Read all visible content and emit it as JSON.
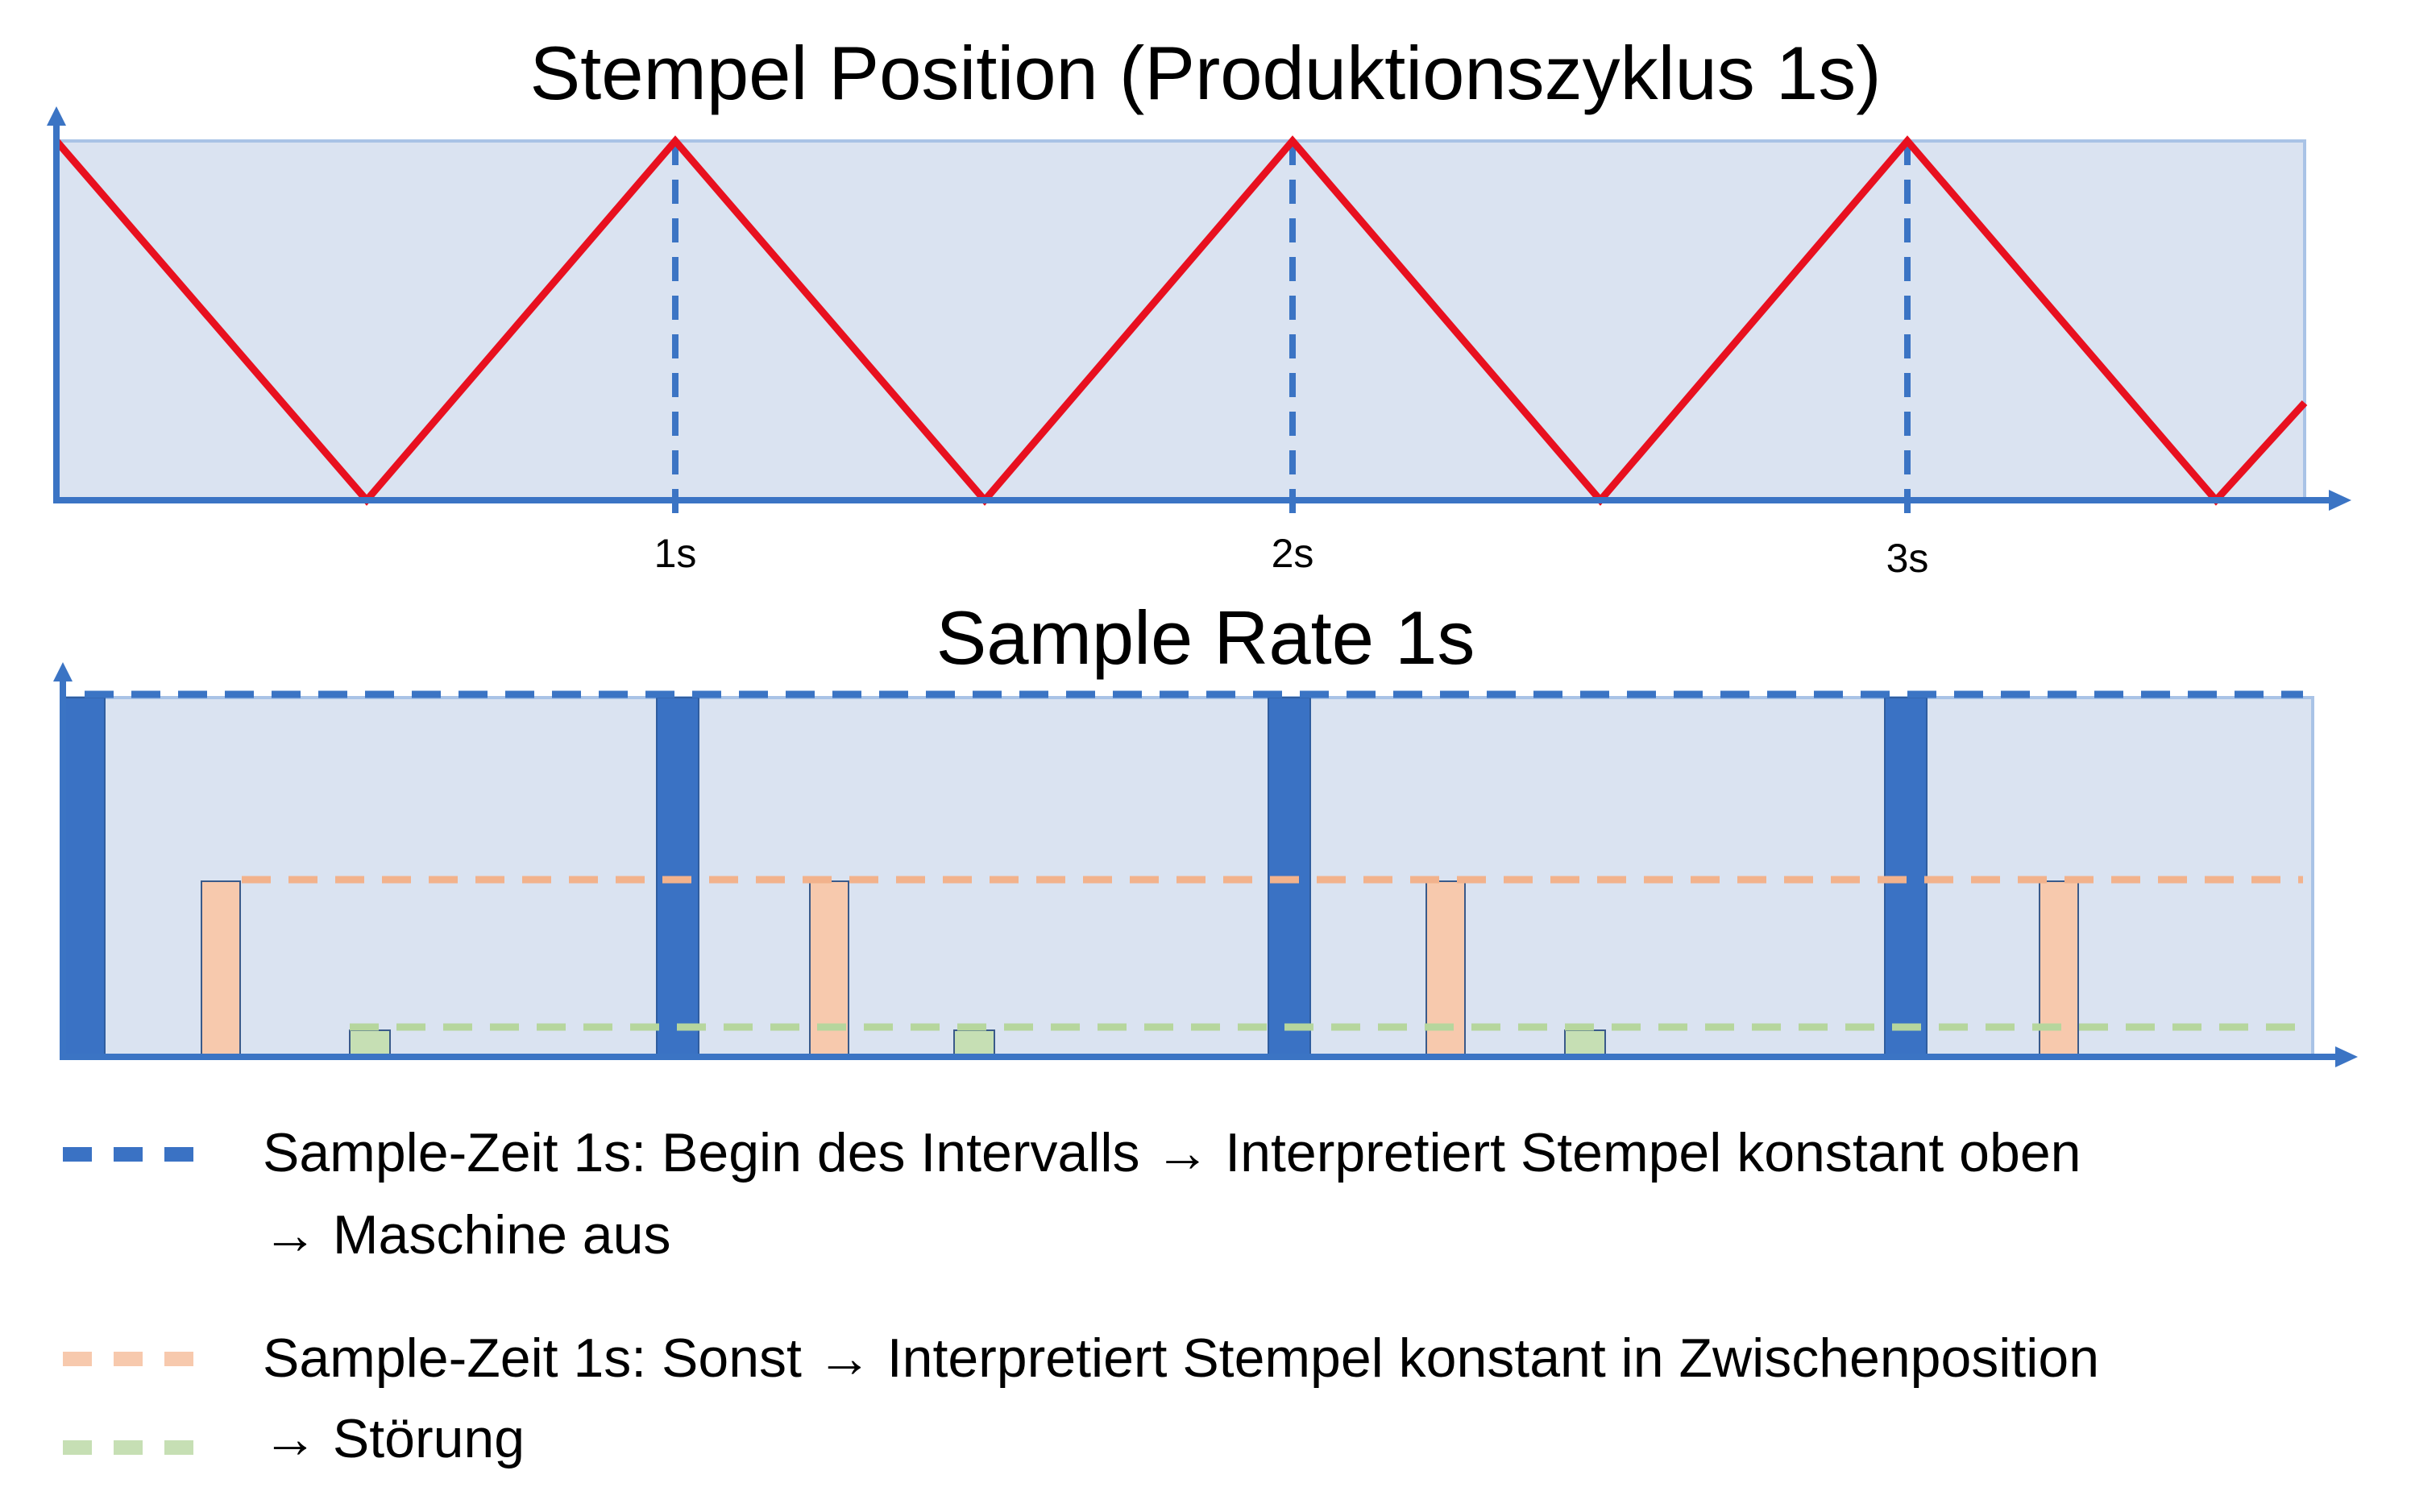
{
  "colors": {
    "background": "#ffffff",
    "panel_fill": "#dae3f1",
    "panel_border": "#a9c3e6",
    "axis": "#3b74c4",
    "position_line": "#e8101f",
    "sample_blue": "#3a72c4",
    "sample_orange": "#f7c9ad",
    "sample_orange_line": "#f2b28c",
    "sample_green": "#c6dfb4",
    "sample_green_line": "#b6d69d"
  },
  "top_chart": {
    "title": "Stempel Position (Produktionszyklus 1s)",
    "tick_labels": [
      "1s",
      "2s",
      "3s"
    ]
  },
  "bottom_chart": {
    "title": "Sample Rate 1s"
  },
  "legend": {
    "items": [
      {
        "color_key": "sample_blue",
        "line1": "Sample-Zeit 1s: Begin des Intervalls → Interpretiert Stempel konstant oben",
        "line2": "→ Maschine aus"
      },
      {
        "color_key": "sample_orange",
        "line1": "Sample-Zeit 1s: Sonst → Interpretiert Stempel konstant in Zwischenposition",
        "line2": ""
      },
      {
        "color_key": "sample_green",
        "line1": "",
        "line2": "→ Störung"
      }
    ]
  }
}
